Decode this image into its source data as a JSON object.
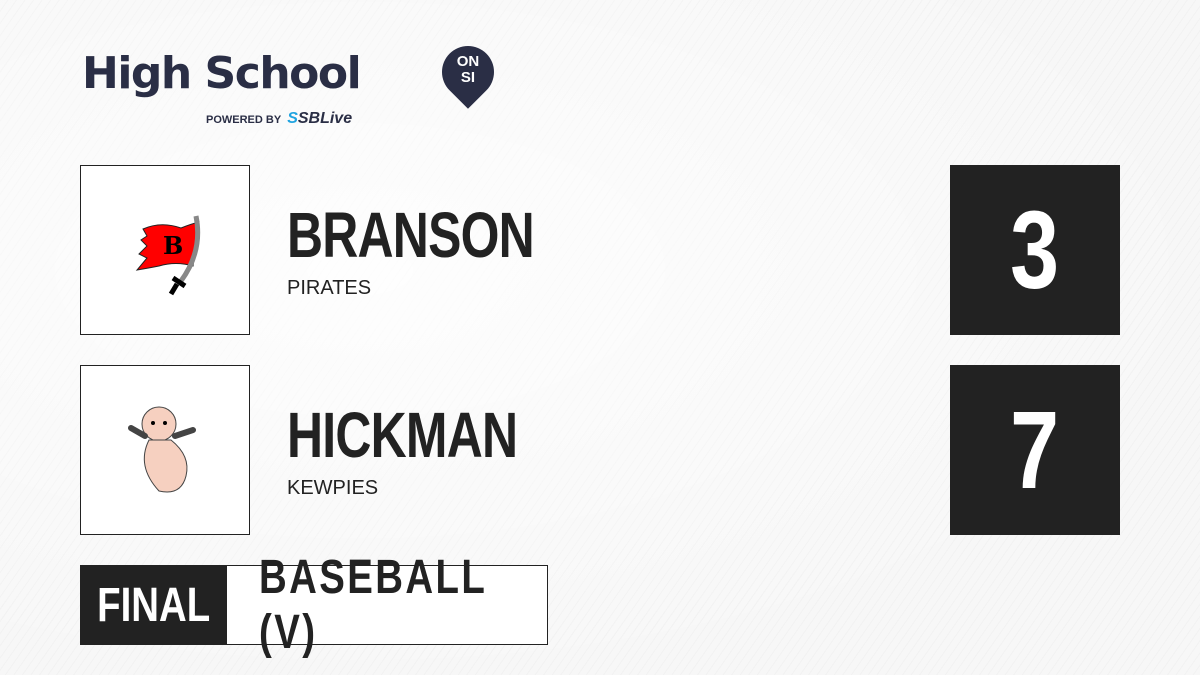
{
  "brand": {
    "title": "High School",
    "badge_line1": "ON",
    "badge_line2": "SI",
    "powered_by": "POWERED BY",
    "partner_prefix": "S",
    "partner": "SBLive",
    "accent": "#1fa3e0",
    "dark": "#2a2e45"
  },
  "teams": [
    {
      "name": "BRANSON",
      "mascot": "PIRATES",
      "score": "3",
      "logo": "pirate-flag-logo"
    },
    {
      "name": "HICKMAN",
      "mascot": "KEWPIES",
      "score": "7",
      "logo": "kewpie-logo"
    }
  ],
  "status": "FINAL",
  "sport": "BASEBALL (V)"
}
